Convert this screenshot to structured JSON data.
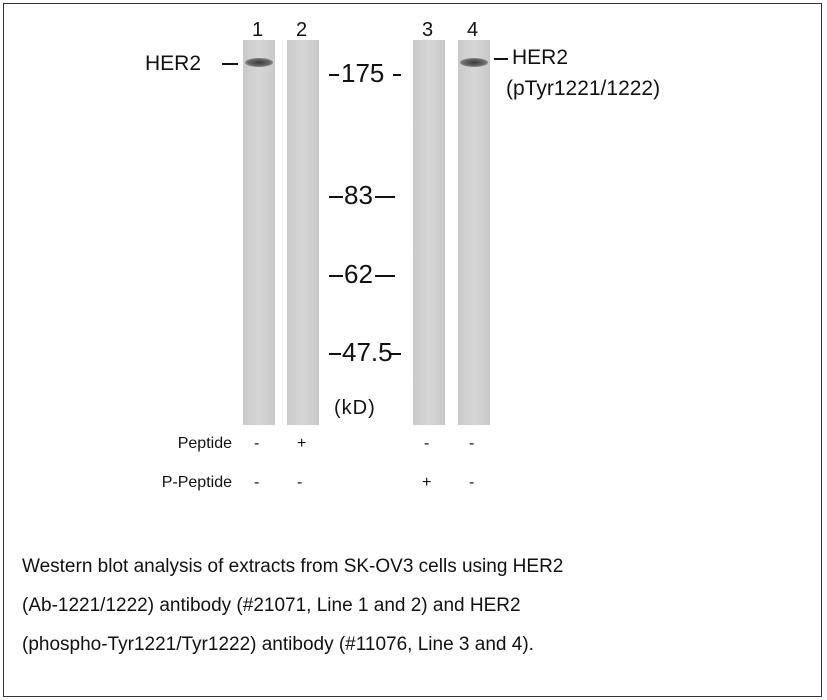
{
  "figure": {
    "lane_numbers": [
      "1",
      "2",
      "3",
      "4"
    ],
    "left_label": "HER2",
    "right_label": {
      "name": "HER2",
      "detail": "(pTyr1221/1222)"
    },
    "markers": [
      "175",
      "83",
      "62",
      "47.5"
    ],
    "unit": "(kD)",
    "treatments": [
      {
        "name": "Peptide",
        "signs": [
          "-",
          "+",
          "-",
          "-"
        ]
      },
      {
        "name": "P-Peptide",
        "signs": [
          "-",
          "-",
          "+",
          "-"
        ]
      }
    ]
  },
  "caption": {
    "lines": [
      "Western blot analysis of extracts from SK-OV3 cells using HER2",
      "(Ab-1221/1222) antibody (#21071, Line 1 and 2) and HER2",
      "(phospho-Tyr1221/Tyr1222) antibody (#11076, Line 3 and 4)."
    ]
  }
}
